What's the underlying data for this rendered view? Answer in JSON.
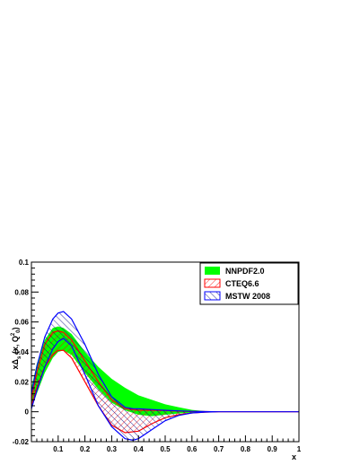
{
  "chart_data": {
    "type": "area",
    "xlabel": "x",
    "ylabel_parts": {
      "main": "xΔ",
      "sub": "s",
      "args": "(x, Q",
      "sup": "2",
      "sub0": "0",
      "close": ")"
    },
    "xlim": [
      0,
      1
    ],
    "ylim": [
      -0.02,
      0.1
    ],
    "x_ticks": [
      "0.1",
      "0.2",
      "0.3",
      "0.4",
      "0.5",
      "0.6",
      "0.7",
      "0.8",
      "0.9",
      "1"
    ],
    "x_tick_values": [
      0.1,
      0.2,
      0.3,
      0.4,
      0.5,
      0.6,
      0.7,
      0.8,
      0.9,
      1.0
    ],
    "y_ticks": [
      "-0.02",
      "0",
      "0.02",
      "0.04",
      "0.06",
      "0.08",
      "0.1"
    ],
    "y_tick_values": [
      -0.02,
      0,
      0.02,
      0.04,
      0.06,
      0.08,
      0.1
    ],
    "grid": false,
    "legend": "top-right",
    "series": [
      {
        "name": "NNPDF2.0",
        "style": "solid",
        "color": "#00ff00",
        "x": [
          0.0,
          0.02,
          0.05,
          0.08,
          0.1,
          0.12,
          0.15,
          0.2,
          0.25,
          0.3,
          0.35,
          0.4,
          0.45,
          0.5,
          0.55,
          0.6,
          0.65,
          0.7,
          0.8,
          0.9,
          1.0
        ],
        "upper": [
          0.016,
          0.032,
          0.048,
          0.056,
          0.057,
          0.056,
          0.052,
          0.04,
          0.03,
          0.022,
          0.016,
          0.011,
          0.008,
          0.005,
          0.003,
          0.0012,
          0.0004,
          0.0001,
          0.0,
          0.0,
          0.0
        ],
        "lower": [
          0.002,
          0.012,
          0.026,
          0.036,
          0.04,
          0.041,
          0.038,
          0.026,
          0.015,
          0.006,
          0.001,
          -0.002,
          -0.003,
          -0.002,
          -0.0012,
          -0.0006,
          -0.0002,
          0.0,
          0.0,
          0.0,
          0.0
        ]
      },
      {
        "name": "CTEQ6.6",
        "style": "hatch",
        "color": "#ff0000",
        "x": [
          0.0,
          0.02,
          0.05,
          0.08,
          0.1,
          0.12,
          0.15,
          0.2,
          0.25,
          0.3,
          0.35,
          0.4,
          0.45,
          0.5,
          0.55,
          0.6,
          0.65,
          0.7,
          0.8,
          0.9,
          1.0
        ],
        "upper": [
          0.008,
          0.026,
          0.045,
          0.053,
          0.054,
          0.053,
          0.048,
          0.034,
          0.02,
          0.008,
          0.002,
          0.001,
          0.001,
          0.0008,
          0.0004,
          0.0002,
          0.0001,
          0.0,
          0.0,
          0.0,
          0.0
        ],
        "lower": [
          0.004,
          0.016,
          0.03,
          0.038,
          0.041,
          0.041,
          0.036,
          0.02,
          0.004,
          -0.009,
          -0.014,
          -0.013,
          -0.008,
          -0.004,
          -0.002,
          -0.0008,
          -0.0003,
          0.0,
          0.0,
          0.0,
          0.0
        ]
      },
      {
        "name": "MSTW 2008",
        "style": "hatch",
        "color": "#0000ff",
        "x": [
          0.0,
          0.02,
          0.05,
          0.08,
          0.1,
          0.12,
          0.15,
          0.2,
          0.25,
          0.3,
          0.35,
          0.38,
          0.4,
          0.45,
          0.5,
          0.55,
          0.6,
          0.65,
          0.7,
          0.8,
          0.9,
          1.0
        ],
        "upper": [
          0.012,
          0.03,
          0.05,
          0.062,
          0.066,
          0.067,
          0.062,
          0.045,
          0.025,
          0.01,
          0.003,
          0.002,
          0.002,
          0.0015,
          0.001,
          0.0006,
          0.0003,
          0.0001,
          0.0,
          0.0,
          0.0,
          0.0
        ],
        "lower": [
          0.002,
          0.014,
          0.03,
          0.042,
          0.047,
          0.049,
          0.044,
          0.025,
          0.004,
          -0.01,
          -0.018,
          -0.019,
          -0.018,
          -0.012,
          -0.006,
          -0.0025,
          -0.0008,
          -0.0002,
          0.0,
          0.0,
          0.0,
          0.0
        ]
      }
    ]
  }
}
